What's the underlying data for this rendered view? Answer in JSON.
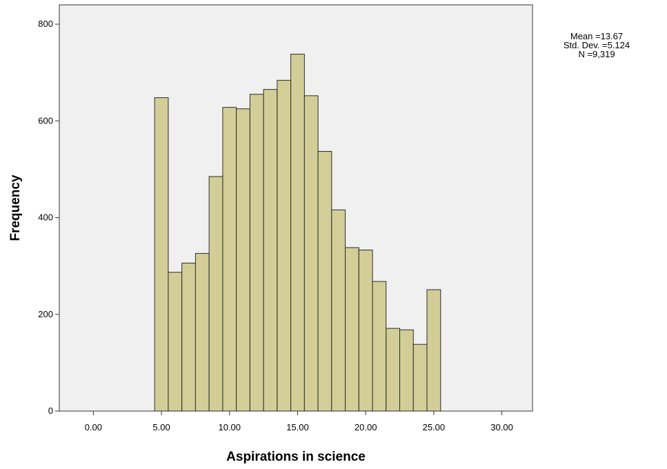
{
  "chart_data": {
    "type": "bar",
    "title": "",
    "xlabel": "Aspirations in science",
    "ylabel": "Frequency",
    "xlim": [
      -2.5,
      32.25
    ],
    "ylim": [
      0,
      840
    ],
    "x_ticks": [
      "0.00",
      "5.00",
      "10.00",
      "15.00",
      "20.00",
      "25.00",
      "30.00"
    ],
    "x_tick_values": [
      0,
      5,
      10,
      15,
      20,
      25,
      30
    ],
    "y_ticks": [
      "0",
      "200",
      "400",
      "600",
      "800"
    ],
    "y_tick_values": [
      0,
      200,
      400,
      600,
      800
    ],
    "bin_width": 1,
    "categories": [
      5,
      6,
      7,
      8,
      9,
      10,
      11,
      12,
      13,
      14,
      15,
      16,
      17,
      18,
      19,
      20,
      21,
      22,
      23,
      24,
      25
    ],
    "values": [
      648,
      287,
      306,
      326,
      485,
      628,
      625,
      655,
      665,
      684,
      738,
      652,
      537,
      416,
      338,
      333,
      268,
      171,
      168,
      138,
      251
    ],
    "bar_color": "#d3ce97",
    "bar_edge_color": "#2a2a2a",
    "plot_background": "#f0f0f0",
    "grid": false,
    "legend": false
  },
  "stats": {
    "mean": "Mean =13.67",
    "std_dev": "Std. Dev. =5.124",
    "n": "N =9,319"
  }
}
